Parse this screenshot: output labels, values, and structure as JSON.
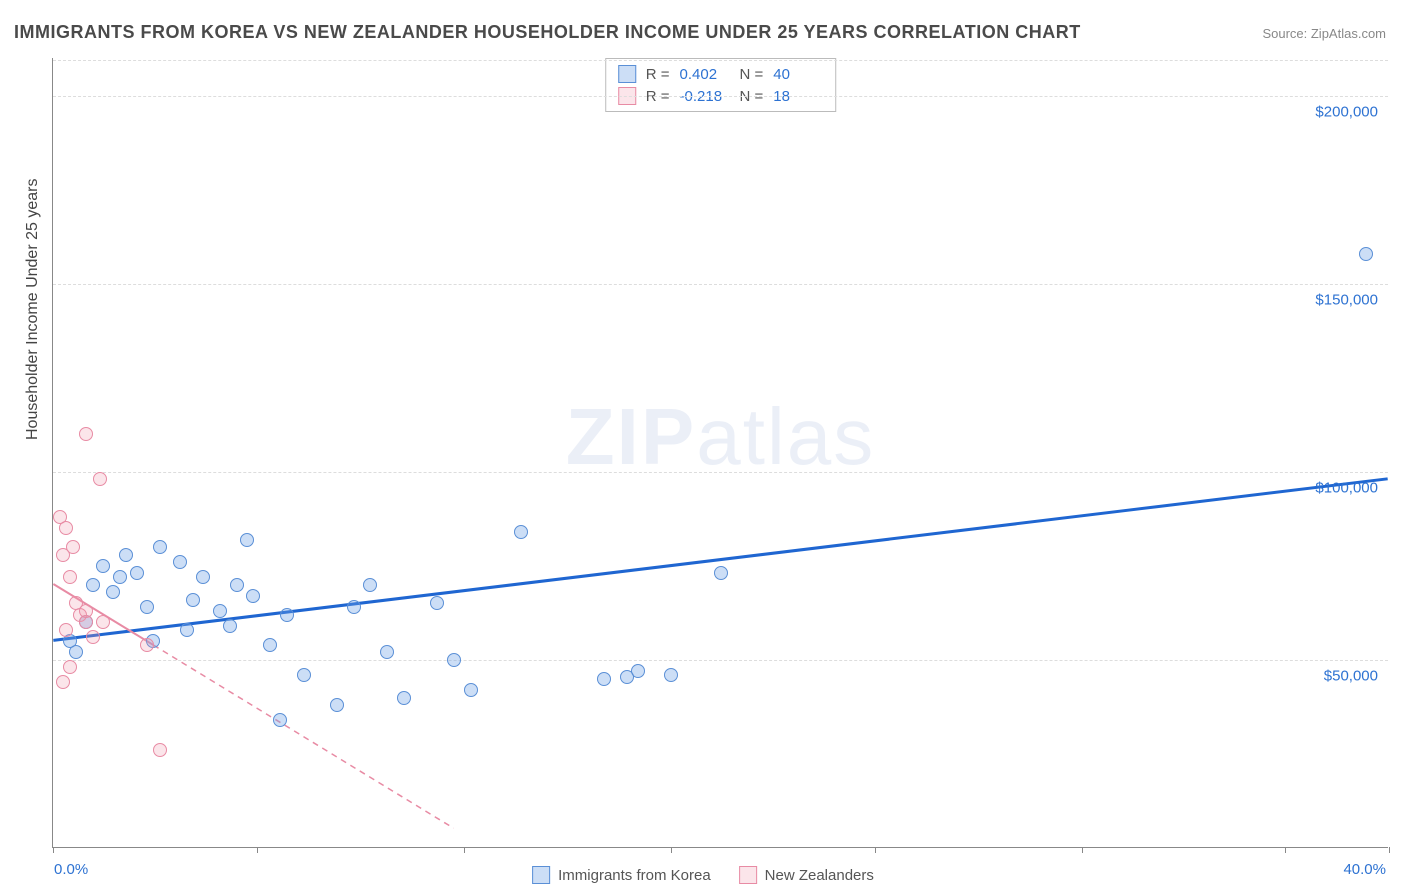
{
  "title": "IMMIGRANTS FROM KOREA VS NEW ZEALANDER HOUSEHOLDER INCOME UNDER 25 YEARS CORRELATION CHART",
  "source": "Source: ZipAtlas.com",
  "ylabel": "Householder Income Under 25 years",
  "watermark_a": "ZIP",
  "watermark_b": "atlas",
  "chart": {
    "type": "scatter-with-trend",
    "background_color": "#ffffff",
    "grid_color": "#dddddd",
    "axis_color": "#888888",
    "tick_label_color": "#2d72d2",
    "xlim": [
      0,
      40
    ],
    "ylim": [
      0,
      210000
    ],
    "y_gridlines": [
      50000,
      100000,
      150000,
      200000
    ],
    "y_tick_labels": [
      "$50,000",
      "$100,000",
      "$150,000",
      "$200,000"
    ],
    "x_tick_labels": {
      "left": "0.0%",
      "right": "40.0%"
    },
    "x_minor_ticks": [
      0,
      6.1,
      12.3,
      18.5,
      24.6,
      30.8,
      36.9,
      40
    ],
    "series": [
      {
        "name": "Immigrants from Korea",
        "color_fill": "rgba(110,160,230,0.35)",
        "color_stroke": "#5a8fd6",
        "marker_radius": 7,
        "r": 0.402,
        "n": 40,
        "trend": {
          "x1": 0,
          "y1": 55000,
          "x2": 40,
          "y2": 98000,
          "stroke": "#1f66d1",
          "width": 3,
          "dash": "none"
        },
        "points": [
          [
            0.5,
            55000
          ],
          [
            0.7,
            52000
          ],
          [
            1.0,
            60000
          ],
          [
            1.2,
            70000
          ],
          [
            1.5,
            75000
          ],
          [
            1.8,
            68000
          ],
          [
            2.0,
            72000
          ],
          [
            2.2,
            78000
          ],
          [
            2.5,
            73000
          ],
          [
            2.8,
            64000
          ],
          [
            3.0,
            55000
          ],
          [
            3.2,
            80000
          ],
          [
            4.0,
            58000
          ],
          [
            4.2,
            66000
          ],
          [
            4.5,
            72000
          ],
          [
            5.0,
            63000
          ],
          [
            5.5,
            70000
          ],
          [
            5.8,
            82000
          ],
          [
            6.0,
            67000
          ],
          [
            6.5,
            54000
          ],
          [
            6.8,
            34000
          ],
          [
            7.0,
            62000
          ],
          [
            7.5,
            46000
          ],
          [
            8.5,
            38000
          ],
          [
            9.0,
            64000
          ],
          [
            9.5,
            70000
          ],
          [
            10.0,
            52000
          ],
          [
            10.5,
            40000
          ],
          [
            11.5,
            65000
          ],
          [
            12.0,
            50000
          ],
          [
            12.5,
            42000
          ],
          [
            14.0,
            84000
          ],
          [
            16.5,
            45000
          ],
          [
            17.2,
            45500
          ],
          [
            17.5,
            47000
          ],
          [
            18.5,
            46000
          ],
          [
            20.0,
            73000
          ],
          [
            39.3,
            158000
          ],
          [
            3.8,
            76000
          ],
          [
            5.3,
            59000
          ]
        ]
      },
      {
        "name": "New Zealanders",
        "color_fill": "rgba(240,150,170,0.25)",
        "color_stroke": "#e88ba4",
        "marker_radius": 7,
        "r": -0.218,
        "n": 18,
        "trend": {
          "x1": 0,
          "y1": 70000,
          "x2": 12,
          "y2": 5000,
          "stroke": "#e88ba4",
          "width": 2,
          "dash": "6 5"
        },
        "trend_solid_until": 3.0,
        "points": [
          [
            0.2,
            88000
          ],
          [
            0.3,
            78000
          ],
          [
            0.4,
            85000
          ],
          [
            0.5,
            72000
          ],
          [
            0.6,
            80000
          ],
          [
            0.7,
            65000
          ],
          [
            0.8,
            62000
          ],
          [
            0.3,
            44000
          ],
          [
            1.0,
            60000
          ],
          [
            1.2,
            56000
          ],
          [
            1.0,
            110000
          ],
          [
            1.4,
            98000
          ],
          [
            0.4,
            58000
          ],
          [
            1.5,
            60000
          ],
          [
            0.5,
            48000
          ],
          [
            2.8,
            54000
          ],
          [
            3.2,
            26000
          ],
          [
            1.0,
            63000
          ]
        ]
      }
    ]
  },
  "stats_box": {
    "rows": [
      {
        "swatch": "blue",
        "r_label": "R =",
        "r_val": "0.402",
        "n_label": "N =",
        "n_val": "40"
      },
      {
        "swatch": "pink",
        "r_label": "R =",
        "r_val": "-0.218",
        "n_label": "N =",
        "n_val": "18"
      }
    ]
  },
  "bottom_legend": [
    {
      "swatch": "blue",
      "label": "Immigrants from Korea"
    },
    {
      "swatch": "pink",
      "label": "New Zealanders"
    }
  ]
}
